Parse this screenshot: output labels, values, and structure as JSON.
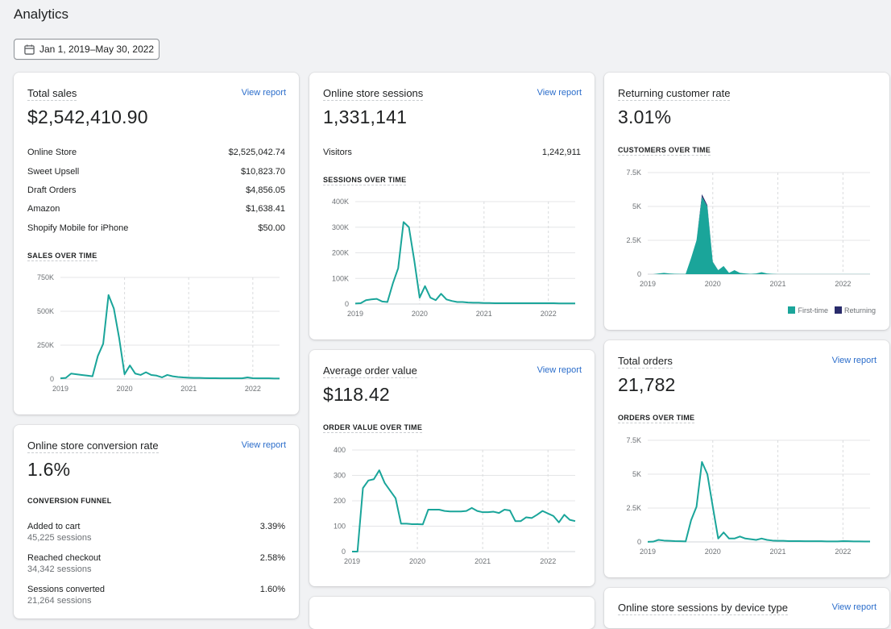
{
  "page": {
    "title": "Analytics"
  },
  "date_range": {
    "label": "Jan 1, 2019–May 30, 2022"
  },
  "colors": {
    "series": "#1aa59a",
    "returning": "#292b6b",
    "link": "#2c6ecb"
  },
  "cards": {
    "total_sales": {
      "title": "Total sales",
      "link": "View report",
      "value": "$2,542,410.90",
      "breakdown": [
        {
          "label": "Online Store",
          "value": "$2,525,042.74"
        },
        {
          "label": "Sweet Upsell",
          "value": "$10,823.70"
        },
        {
          "label": "Draft Orders",
          "value": "$4,856.05"
        },
        {
          "label": "Amazon",
          "value": "$1,638.41"
        },
        {
          "label": "Shopify Mobile for iPhone",
          "value": "$50.00"
        }
      ],
      "chart_heading": "SALES OVER TIME"
    },
    "sessions": {
      "title": "Online store sessions",
      "link": "View report",
      "value": "1,331,141",
      "visitors_label": "Visitors",
      "visitors_value": "1,242,911",
      "chart_heading": "SESSIONS OVER TIME"
    },
    "returning": {
      "title": "Returning customer rate",
      "value": "3.01%",
      "chart_heading": "CUSTOMERS OVER TIME",
      "legend": [
        "First-time",
        "Returning"
      ]
    },
    "conversion": {
      "title": "Online store conversion rate",
      "link": "View report",
      "value": "1.6%",
      "funnel_heading": "CONVERSION FUNNEL",
      "funnel": [
        {
          "label": "Added to cart",
          "sessions": "45,225 sessions",
          "rate": "3.39%"
        },
        {
          "label": "Reached checkout",
          "sessions": "34,342 sessions",
          "rate": "2.58%"
        },
        {
          "label": "Sessions converted",
          "sessions": "21,264 sessions",
          "rate": "1.60%"
        }
      ]
    },
    "aov": {
      "title": "Average order value",
      "link": "View report",
      "value": "$118.42",
      "chart_heading": "ORDER VALUE OVER TIME"
    },
    "orders": {
      "title": "Total orders",
      "link": "View report",
      "value": "21,782",
      "chart_heading": "ORDERS OVER TIME"
    },
    "device": {
      "title": "Online store sessions by device type",
      "link": "View report"
    }
  },
  "chart_data": [
    {
      "id": "sales",
      "type": "line",
      "title": "SALES OVER TIME",
      "x_ticks": [
        "2019",
        "2020",
        "2021",
        "2022"
      ],
      "y_ticks": [
        "0",
        "250K",
        "500K",
        "750K"
      ],
      "ylim": [
        0,
        750000
      ],
      "x": [
        0,
        1,
        2,
        3,
        4,
        5,
        6,
        7,
        8,
        9,
        10,
        11,
        12,
        13,
        14,
        15,
        16,
        17,
        18,
        19,
        20,
        21,
        22,
        23,
        24,
        25,
        26,
        27,
        28,
        29,
        30,
        31,
        32,
        33,
        34,
        35,
        36,
        37,
        38,
        39,
        40,
        41
      ],
      "values": [
        5000,
        8000,
        40000,
        35000,
        30000,
        25000,
        20000,
        170000,
        260000,
        620000,
        520000,
        300000,
        35000,
        100000,
        40000,
        30000,
        50000,
        30000,
        25000,
        12000,
        30000,
        20000,
        15000,
        12000,
        10000,
        8000,
        8000,
        7000,
        6000,
        6000,
        5000,
        5000,
        5000,
        5000,
        5000,
        12000,
        6000,
        5000,
        5000,
        5000,
        4000,
        4000
      ]
    },
    {
      "id": "sessions",
      "type": "line",
      "title": "SESSIONS OVER TIME",
      "x_ticks": [
        "2019",
        "2020",
        "2021",
        "2022"
      ],
      "y_ticks": [
        "0",
        "100K",
        "200K",
        "300K",
        "400K"
      ],
      "ylim": [
        0,
        400000
      ],
      "x": [
        0,
        1,
        2,
        3,
        4,
        5,
        6,
        7,
        8,
        9,
        10,
        11,
        12,
        13,
        14,
        15,
        16,
        17,
        18,
        19,
        20,
        21,
        22,
        23,
        24,
        25,
        26,
        27,
        28,
        29,
        30,
        31,
        32,
        33,
        34,
        35,
        36,
        37,
        38,
        39,
        40,
        41
      ],
      "values": [
        2000,
        3000,
        15000,
        18000,
        20000,
        10000,
        8000,
        80000,
        140000,
        320000,
        300000,
        170000,
        25000,
        70000,
        25000,
        15000,
        40000,
        18000,
        12000,
        8000,
        8000,
        6000,
        5000,
        5000,
        4000,
        4000,
        3000,
        3000,
        3000,
        3000,
        3000,
        3000,
        3000,
        3000,
        3000,
        3000,
        3000,
        3000,
        2500,
        2500,
        2500,
        2500
      ]
    },
    {
      "id": "customers",
      "type": "area",
      "title": "CUSTOMERS OVER TIME",
      "x_ticks": [
        "2019",
        "2020",
        "2021",
        "2022"
      ],
      "y_ticks": [
        "0",
        "2.5K",
        "5K",
        "7.5K"
      ],
      "ylim": [
        0,
        7500
      ],
      "x": [
        0,
        1,
        2,
        3,
        4,
        5,
        6,
        7,
        8,
        9,
        10,
        11,
        12,
        13,
        14,
        15,
        16,
        17,
        18,
        19,
        20,
        21,
        22,
        23,
        24,
        25,
        26,
        27,
        28,
        29,
        30,
        31,
        32,
        33,
        34,
        35,
        36,
        37,
        38,
        39,
        40,
        41
      ],
      "series": [
        {
          "name": "First-time",
          "values": [
            0,
            0,
            50,
            100,
            50,
            30,
            20,
            20,
            1200,
            2500,
            5700,
            5000,
            900,
            300,
            600,
            100,
            300,
            100,
            50,
            20,
            50,
            150,
            50,
            20,
            10,
            10,
            10,
            10,
            10,
            10,
            10,
            10,
            10,
            10,
            10,
            10,
            10,
            10,
            10,
            10,
            10,
            10
          ]
        },
        {
          "name": "Returning",
          "values": [
            0,
            0,
            0,
            0,
            0,
            0,
            0,
            0,
            0,
            0,
            200,
            100,
            20,
            0,
            0,
            0,
            0,
            0,
            0,
            0,
            0,
            0,
            0,
            0,
            0,
            0,
            0,
            0,
            0,
            0,
            0,
            0,
            0,
            0,
            0,
            0,
            0,
            0,
            0,
            0,
            0,
            0
          ]
        }
      ]
    },
    {
      "id": "aov",
      "type": "line",
      "title": "ORDER VALUE OVER TIME",
      "x_ticks": [
        "2019",
        "2020",
        "2021",
        "2022"
      ],
      "y_ticks": [
        "0",
        "100",
        "200",
        "300",
        "400"
      ],
      "ylim": [
        0,
        400
      ],
      "x": [
        0,
        1,
        2,
        3,
        4,
        5,
        6,
        7,
        8,
        9,
        10,
        11,
        12,
        13,
        14,
        15,
        16,
        17,
        18,
        19,
        20,
        21,
        22,
        23,
        24,
        25,
        26,
        27,
        28,
        29,
        30,
        31,
        32,
        33,
        34,
        35,
        36,
        37,
        38,
        39,
        40,
        41
      ],
      "values": [
        0,
        0,
        250,
        280,
        285,
        320,
        270,
        240,
        210,
        110,
        110,
        108,
        108,
        107,
        165,
        165,
        165,
        160,
        158,
        158,
        158,
        160,
        172,
        160,
        155,
        155,
        157,
        152,
        165,
        162,
        120,
        120,
        135,
        132,
        145,
        160,
        150,
        140,
        115,
        145,
        125,
        120
      ]
    },
    {
      "id": "orders",
      "type": "line",
      "title": "ORDERS OVER TIME",
      "x_ticks": [
        "2019",
        "2020",
        "2021",
        "2022"
      ],
      "y_ticks": [
        "0",
        "2.5K",
        "5K",
        "7.5K"
      ],
      "ylim": [
        0,
        7500
      ],
      "x": [
        0,
        1,
        2,
        3,
        4,
        5,
        6,
        7,
        8,
        9,
        10,
        11,
        12,
        13,
        14,
        15,
        16,
        17,
        18,
        19,
        20,
        21,
        22,
        23,
        24,
        25,
        26,
        27,
        28,
        29,
        30,
        31,
        32,
        33,
        34,
        35,
        36,
        37,
        38,
        39,
        40,
        41
      ],
      "values": [
        10,
        20,
        150,
        100,
        80,
        60,
        50,
        40,
        1600,
        2600,
        5900,
        5000,
        2600,
        250,
        700,
        250,
        250,
        400,
        250,
        200,
        150,
        250,
        150,
        100,
        80,
        80,
        60,
        60,
        60,
        50,
        50,
        50,
        50,
        40,
        40,
        40,
        60,
        50,
        40,
        40,
        30,
        30
      ]
    }
  ]
}
